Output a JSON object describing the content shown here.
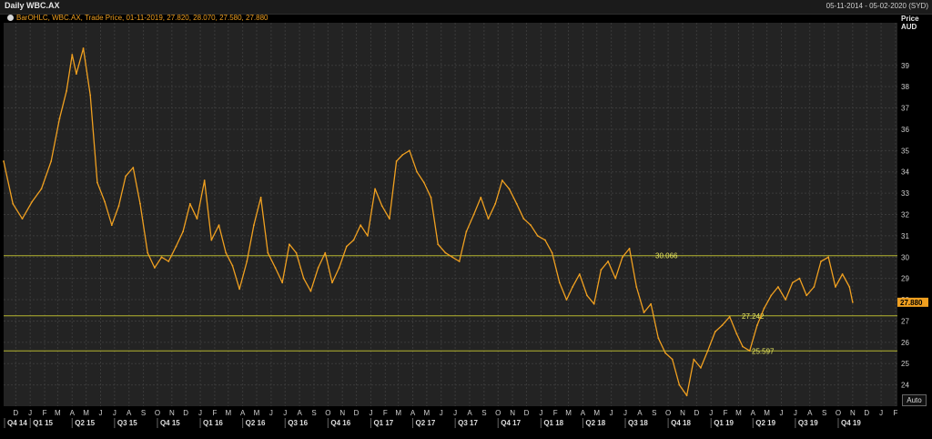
{
  "header": {
    "title": "Daily WBC.AX",
    "date_range": "05-11-2014 - 05-02-2020 (SYD)"
  },
  "legend": {
    "text": "BarOHLC, WBC.AX, Trade Price, 01-11-2019, 27.820, 28.070, 27.580, 27.880"
  },
  "price_axis": {
    "label_line1": "Price",
    "label_line2": "AUD"
  },
  "auto_button": {
    "label": "Auto"
  },
  "colors": {
    "background": "#232323",
    "grid": "#3a3a3a",
    "series": "#f0a020",
    "horizontal_lines": "#b5b530",
    "last_price_badge": "#f0a020"
  },
  "chart_data": {
    "type": "line",
    "title": "Daily WBC.AX",
    "ylabel": "Price AUD",
    "ylim": [
      23,
      41
    ],
    "xlim": [
      "2014-11-05",
      "2020-02-05"
    ],
    "y_ticks": [
      24,
      25,
      26,
      27,
      28,
      29,
      30,
      31,
      32,
      33,
      34,
      35,
      36,
      37,
      38,
      39
    ],
    "grid": true,
    "month_ticks": [
      "D",
      "J",
      "F",
      "M",
      "A",
      "M",
      "J",
      "J",
      "A",
      "S",
      "O",
      "N",
      "D",
      "J",
      "F",
      "M",
      "A",
      "M",
      "J",
      "J",
      "A",
      "S",
      "O",
      "N",
      "D",
      "J",
      "F",
      "M",
      "A",
      "M",
      "J",
      "J",
      "A",
      "S",
      "O",
      "N",
      "D",
      "J",
      "F",
      "M",
      "A",
      "M",
      "J",
      "J",
      "A",
      "S",
      "O",
      "N",
      "D",
      "J",
      "F",
      "M",
      "A",
      "M",
      "J",
      "J",
      "A",
      "S",
      "O",
      "N",
      "D",
      "J",
      "F",
      "M",
      "A",
      "M",
      "J",
      "J",
      "A",
      "S",
      "O",
      "N",
      "D",
      "J",
      "F"
    ],
    "quarter_ticks": [
      "Q4 14",
      "Q1 15",
      "Q2 15",
      "Q3 15",
      "Q4 15",
      "Q1 16",
      "Q2 16",
      "Q3 16",
      "Q4 16",
      "Q1 17",
      "Q2 17",
      "Q3 17",
      "Q4 17",
      "Q1 18",
      "Q2 18",
      "Q3 18",
      "Q4 18",
      "Q1 19",
      "Q2 19",
      "Q3 19",
      "Q4 19"
    ],
    "series": [
      {
        "x": [
          "2014-11-05",
          "2014-11-25",
          "2014-12-15",
          "2015-01-05",
          "2015-01-25",
          "2015-02-15",
          "2015-03-05",
          "2015-03-20",
          "2015-04-01",
          "2015-04-10",
          "2015-04-25",
          "2015-05-10",
          "2015-05-25",
          "2015-06-10",
          "2015-06-25",
          "2015-07-10",
          "2015-07-25",
          "2015-08-10",
          "2015-08-25",
          "2015-09-10",
          "2015-09-25",
          "2015-10-10",
          "2015-10-25",
          "2015-11-10",
          "2015-11-25",
          "2015-12-10",
          "2015-12-25",
          "2016-01-10",
          "2016-01-25",
          "2016-02-10",
          "2016-02-25",
          "2016-03-10",
          "2016-03-25",
          "2016-04-10",
          "2016-04-25",
          "2016-05-10",
          "2016-05-25",
          "2016-06-10",
          "2016-06-25",
          "2016-07-10",
          "2016-07-25",
          "2016-08-10",
          "2016-08-25",
          "2016-09-10",
          "2016-09-25",
          "2016-10-10",
          "2016-10-25",
          "2016-11-10",
          "2016-11-25",
          "2016-12-10",
          "2016-12-25",
          "2017-01-10",
          "2017-01-25",
          "2017-02-10",
          "2017-02-25",
          "2017-03-10",
          "2017-03-25",
          "2017-04-10",
          "2017-04-25",
          "2017-05-10",
          "2017-05-25",
          "2017-06-10",
          "2017-06-25",
          "2017-07-10",
          "2017-07-25",
          "2017-08-10",
          "2017-08-25",
          "2017-09-10",
          "2017-09-25",
          "2017-10-10",
          "2017-10-25",
          "2017-11-10",
          "2017-11-25",
          "2017-12-10",
          "2017-12-25",
          "2018-01-10",
          "2018-01-25",
          "2018-02-10",
          "2018-02-25",
          "2018-03-10",
          "2018-03-25",
          "2018-04-10",
          "2018-04-25",
          "2018-05-10",
          "2018-05-25",
          "2018-06-10",
          "2018-06-25",
          "2018-07-10",
          "2018-07-25",
          "2018-08-10",
          "2018-08-25",
          "2018-09-10",
          "2018-09-25",
          "2018-10-10",
          "2018-10-25",
          "2018-11-10",
          "2018-11-25",
          "2018-12-10",
          "2018-12-25",
          "2019-01-10",
          "2019-01-25",
          "2019-02-10",
          "2019-02-25",
          "2019-03-10",
          "2019-03-25",
          "2019-04-10",
          "2019-04-25",
          "2019-05-10",
          "2019-05-25",
          "2019-06-10",
          "2019-06-25",
          "2019-07-10",
          "2019-07-25",
          "2019-08-10",
          "2019-08-25",
          "2019-09-10",
          "2019-09-25",
          "2019-10-10",
          "2019-10-25",
          "2019-11-01"
        ],
        "y": [
          34.5,
          32.5,
          31.8,
          32.6,
          33.2,
          34.5,
          36.5,
          37.8,
          39.5,
          38.6,
          39.8,
          37.6,
          33.5,
          32.6,
          31.5,
          32.4,
          33.8,
          34.2,
          32.5,
          30.2,
          29.5,
          30.0,
          29.8,
          30.5,
          31.2,
          32.5,
          31.8,
          33.6,
          30.8,
          31.5,
          30.2,
          29.6,
          28.5,
          29.8,
          31.5,
          32.8,
          30.2,
          29.5,
          28.8,
          30.6,
          30.2,
          29.0,
          28.4,
          29.5,
          30.2,
          28.8,
          29.5,
          30.5,
          30.8,
          31.5,
          31.0,
          33.2,
          32.4,
          31.8,
          34.5,
          34.8,
          35.0,
          34.0,
          33.5,
          32.8,
          30.6,
          30.2,
          30.0,
          29.8,
          31.2,
          32.0,
          32.8,
          31.8,
          32.5,
          33.6,
          33.2,
          32.5,
          31.8,
          31.5,
          31.0,
          30.8,
          30.2,
          28.8,
          28.0,
          28.6,
          29.2,
          28.2,
          27.8,
          29.4,
          29.8,
          29.0,
          30.0,
          30.4,
          28.6,
          27.4,
          27.8,
          26.2,
          25.5,
          25.2,
          24.0,
          23.5,
          25.2,
          24.8,
          25.6,
          26.5,
          26.8,
          27.2,
          26.4,
          25.8,
          25.6,
          26.8,
          27.6,
          28.2,
          28.6,
          28.0,
          28.8,
          29.0,
          28.2,
          28.6,
          29.8,
          30.0,
          28.6,
          29.2,
          28.6,
          27.88
        ]
      }
    ],
    "horizontal_lines": [
      {
        "label": "30.066",
        "value": 30.066
      },
      {
        "label": "27.242",
        "value": 27.242
      },
      {
        "label": "25.597",
        "value": 25.597
      }
    ],
    "last_price": {
      "label": "27.880",
      "value": 27.88
    }
  }
}
